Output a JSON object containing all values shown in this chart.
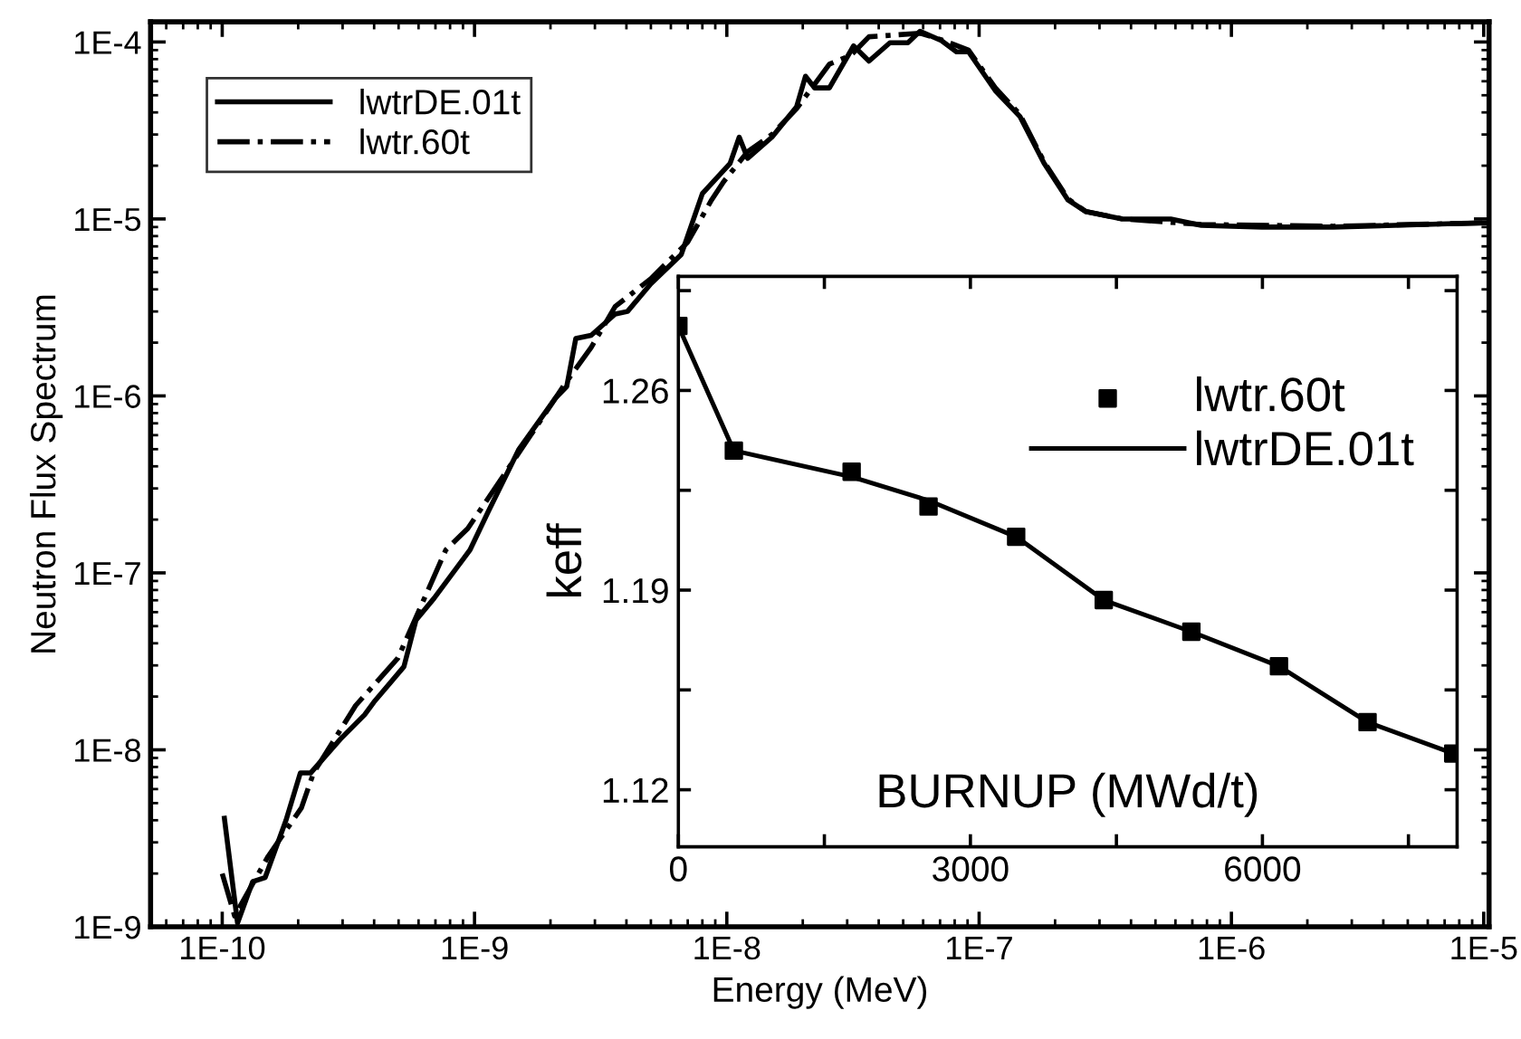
{
  "chart_data": [
    {
      "type": "line",
      "xlabel": "Energy (MeV)",
      "ylabel": "Neutron Flux Spectrum",
      "log": "xy",
      "grid": false,
      "legend": "top left",
      "xlim": [
        5.2e-11,
        1.05e-05
      ],
      "ylim": [
        1e-09,
        0.00013
      ],
      "xticks": [
        {
          "value": 1e-10,
          "label": "1E-10"
        },
        {
          "value": 1e-09,
          "label": "1E-9"
        },
        {
          "value": 1e-08,
          "label": "1E-8"
        },
        {
          "value": 1e-07,
          "label": "1E-7"
        },
        {
          "value": 1e-06,
          "label": "1E-6"
        },
        {
          "value": 1e-05,
          "label": "1E-5"
        }
      ],
      "yticks": [
        {
          "value": 1e-09,
          "label": "1E-9"
        },
        {
          "value": 1e-08,
          "label": "1E-8"
        },
        {
          "value": 1e-07,
          "label": "1E-7"
        },
        {
          "value": 1e-06,
          "label": "1E-6"
        },
        {
          "value": 1e-05,
          "label": "1E-5"
        },
        {
          "value": 0.0001,
          "label": "1E-4"
        }
      ],
      "series": [
        {
          "name": "lwtrDE.01t",
          "color": "#000000",
          "line_style": "solid",
          "x": [
            1.02e-10,
            1.15e-10,
            1.32e-10,
            1.48e-10,
            1.79e-10,
            2.04e-10,
            2.24e-10,
            2.94e-10,
            3.67e-10,
            3.99e-10,
            5.25e-10,
            5.86e-10,
            6.92e-10,
            9.6e-10,
            1.13e-09,
            1.5e-09,
            2.09e-09,
            2.32e-09,
            2.52e-09,
            2.9e-09,
            3.61e-09,
            4.04e-09,
            5e-09,
            6.6e-09,
            8e-09,
            1.03e-08,
            1.12e-08,
            1.21e-08,
            1.51e-08,
            1.89e-08,
            2.05e-08,
            2.23e-08,
            2.55e-08,
            3.18e-08,
            3.66e-08,
            4.43e-08,
            5.22e-08,
            5.83e-08,
            7.08e-08,
            8.13e-08,
            9.08e-08,
            1.16e-07,
            1.45e-07,
            1.81e-07,
            2.25e-07,
            2.65e-07,
            3.7e-07,
            5.75e-07,
            7.6e-07,
            1.32e-06,
            2.54e-06,
            4.42e-06,
            7.2e-06,
            1.01e-05
          ],
          "values": [
            4.1e-09,
            1.05e-09,
            1.8e-09,
            1.9e-09,
            4e-09,
            7.4e-09,
            7.4e-09,
            1.15e-08,
            1.58e-08,
            1.86e-08,
            2.95e-08,
            5.4e-08,
            7.2e-08,
            1.35e-07,
            2.2e-07,
            5e-07,
            9.7e-07,
            1.13e-06,
            2.11e-06,
            2.2e-06,
            2.9e-06,
            3e-06,
            4.3e-06,
            6.3e-06,
            1.39e-05,
            2.06e-05,
            2.9e-05,
            2.2e-05,
            2.9e-05,
            4.3e-05,
            6.4e-05,
            5.5e-05,
            5.5e-05,
            9.5e-05,
            7.8e-05,
            9.9e-05,
            9.9e-05,
            0.000115,
            0.000102,
            8.8e-05,
            8.8e-05,
            5.3e-05,
            3.8e-05,
            2.06e-05,
            1.28e-05,
            1.1e-05,
            1e-05,
            1e-05,
            9.2e-06,
            9e-06,
            9e-06,
            9.2e-06,
            9.4e-06,
            9.5e-06
          ]
        },
        {
          "name": "lwtr.60t",
          "color": "#000000",
          "line_style": "dashdot",
          "x": [
            1e-10,
            1.12e-10,
            1.52e-10,
            2.06e-10,
            2.3e-10,
            3.38e-10,
            4.97e-10,
            7.7e-10,
            9.4e-10,
            1.67e-09,
            2.32e-09,
            2.9e-09,
            3.61e-09,
            5e-09,
            7e-09,
            8.7e-09,
            9.7e-09,
            1.21e-08,
            1.51e-08,
            1.89e-08,
            2.55e-08,
            3.1e-08,
            3.66e-08,
            5.83e-08,
            7.08e-08,
            9.08e-08,
            1.16e-07,
            1.45e-07,
            1.81e-07,
            2.25e-07,
            2.65e-07,
            3.7e-07,
            7.6e-07,
            2.54e-06,
            7.2e-06,
            1.01e-05
          ],
          "values": [
            2e-09,
            1.15e-09,
            2.5e-09,
            4.7e-09,
            7.4e-09,
            1.78e-08,
            3.3e-08,
            1.35e-07,
            1.78e-07,
            6e-07,
            1.21e-06,
            1.88e-06,
            3.2e-06,
            4.6e-06,
            7.4e-06,
            1.28e-05,
            1.62e-05,
            2.4e-05,
            3e-05,
            4.2e-05,
            7.5e-05,
            8.4e-05,
            0.000107,
            0.000112,
            0.000103,
            9e-05,
            5.5e-05,
            3.9e-05,
            2.1e-05,
            1.3e-05,
            1.1e-05,
            1e-05,
            9.3e-06,
            9.1e-06,
            9.4e-06,
            9.5e-06
          ]
        }
      ]
    },
    {
      "type": "line",
      "xlabel": "BURNUP (MWd/t)",
      "ylabel": "keff",
      "grid": false,
      "legend": "top right",
      "xlim": [
        0,
        8000
      ],
      "ylim": [
        1.1,
        1.3
      ],
      "xticks": [
        0,
        {
          "value": 1500,
          "label": null
        },
        3000,
        {
          "value": 4500,
          "label": null
        },
        6000,
        {
          "value": 7500,
          "label": null
        }
      ],
      "yticks": [
        {
          "value": 1.12,
          "label": "1.12"
        },
        {
          "value": 1.155,
          "label": null
        },
        {
          "value": 1.19,
          "label": "1.19"
        },
        {
          "value": 1.225,
          "label": null
        },
        {
          "value": 1.26,
          "label": "1.26"
        },
        {
          "value": 1.295,
          "label": null
        }
      ],
      "series": [
        {
          "name": "lwtr.60t",
          "type": "scatter",
          "marker": "square",
          "color": "#000000",
          "x": [
            0,
            570,
            1780,
            2570,
            3470,
            4370,
            5270,
            6170,
            7080,
            7960
          ],
          "values": [
            1.2826,
            1.2389,
            1.2315,
            1.2193,
            1.2087,
            1.1865,
            1.1754,
            1.1633,
            1.1437,
            1.1327
          ]
        },
        {
          "name": "lwtrDE.01t",
          "type": "line",
          "line_style": "solid",
          "color": "#000000",
          "x": [
            0,
            570,
            1780,
            2570,
            3470,
            4370,
            5270,
            6170,
            7080,
            7960
          ],
          "values": [
            1.2826,
            1.2389,
            1.2297,
            1.2214,
            1.2087,
            1.1865,
            1.1754,
            1.1633,
            1.1437,
            1.1327
          ]
        }
      ]
    }
  ]
}
